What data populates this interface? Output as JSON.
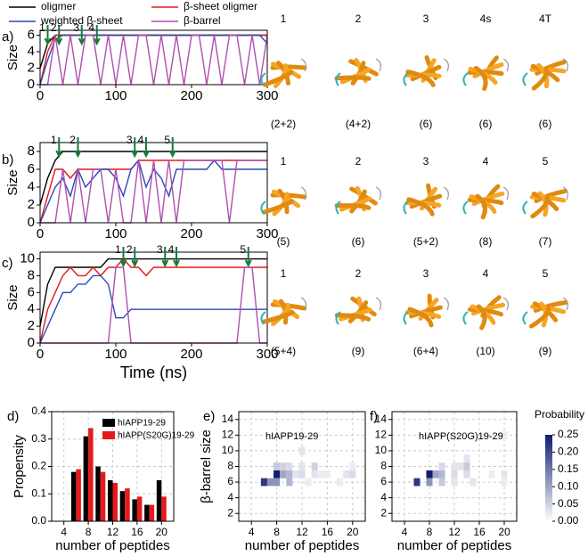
{
  "chart_data": [
    {
      "type": "line",
      "panel_label": "a)",
      "y_label": "Size",
      "xlim": [
        0,
        300
      ],
      "xticks": [
        0,
        100,
        200,
        300
      ],
      "ylim": [
        0,
        6.6
      ],
      "yticks": [
        0,
        2,
        4,
        6
      ],
      "x": [
        0,
        10,
        20,
        30,
        40,
        50,
        60,
        70,
        80,
        90,
        100,
        110,
        120,
        130,
        140,
        150,
        160,
        170,
        180,
        190,
        200,
        210,
        220,
        230,
        240,
        250,
        260,
        270,
        280,
        290,
        300
      ],
      "series": [
        {
          "name": "oligmer",
          "color": "#000000",
          "values": [
            2,
            5,
            6,
            6,
            6,
            6,
            6,
            6,
            6,
            6,
            6,
            6,
            6,
            6,
            6,
            6,
            6,
            6,
            6,
            6,
            6,
            6,
            6,
            6,
            6,
            6,
            6,
            6,
            6,
            6,
            6
          ]
        },
        {
          "name": "β-sheet oligmer",
          "color": "#e41a1c",
          "values": [
            0,
            4,
            6,
            6,
            6,
            6,
            6,
            6,
            6,
            6,
            6,
            6,
            6,
            6,
            6,
            6,
            6,
            6,
            6,
            6,
            6,
            6,
            6,
            6,
            6,
            6,
            6,
            6,
            6,
            6,
            6
          ]
        },
        {
          "name": "weighted β-sheet",
          "color": "#2a4bb8",
          "values": [
            0,
            3,
            5.5,
            6,
            6,
            6,
            6,
            6,
            6,
            6,
            6,
            6,
            6,
            6,
            6,
            6,
            6,
            6,
            6,
            6,
            6,
            6,
            6,
            6,
            6,
            6,
            6,
            6,
            6,
            6,
            5
          ]
        },
        {
          "name": "β-barrel",
          "color": "#b04fb0",
          "values": [
            0,
            0,
            6,
            0,
            6,
            0,
            6,
            6,
            0,
            6,
            0,
            6,
            0,
            6,
            6,
            0,
            6,
            0,
            6,
            0,
            6,
            6,
            0,
            6,
            0,
            6,
            6,
            0,
            6,
            0,
            6
          ]
        }
      ],
      "arrows": {
        "labels": [
          "1",
          "2",
          "3",
          "4"
        ],
        "x": [
          10,
          25,
          55,
          75
        ]
      },
      "snapshots": {
        "labels": [
          "1",
          "2",
          "3",
          "4s",
          "4T"
        ],
        "compositions": [
          "(2+2)",
          "(4+2)",
          "(6)",
          "(6)",
          "(6)"
        ]
      }
    },
    {
      "type": "line",
      "panel_label": "b)",
      "y_label": "Size",
      "xlim": [
        0,
        300
      ],
      "xticks": [
        0,
        100,
        200,
        300
      ],
      "ylim": [
        0,
        9
      ],
      "yticks": [
        0,
        2,
        4,
        6,
        8
      ],
      "x": [
        0,
        10,
        20,
        30,
        40,
        50,
        60,
        70,
        80,
        90,
        100,
        110,
        120,
        130,
        140,
        150,
        160,
        170,
        180,
        190,
        200,
        210,
        220,
        230,
        240,
        250,
        260,
        270,
        280,
        290,
        300
      ],
      "series": [
        {
          "color": "#000000",
          "values": [
            2,
            5,
            7,
            8,
            8,
            8,
            8,
            8,
            8,
            8,
            8,
            8,
            8,
            8,
            8,
            8,
            8,
            8,
            8,
            8,
            8,
            8,
            8,
            8,
            8,
            8,
            8,
            8,
            8,
            8,
            8
          ]
        },
        {
          "color": "#e41a1c",
          "values": [
            0,
            3,
            6,
            6,
            5,
            6,
            6,
            6,
            6,
            6,
            6,
            6,
            6,
            7,
            7,
            7,
            7,
            7,
            7,
            7,
            7,
            7,
            7,
            7,
            7,
            7,
            7,
            7,
            7,
            7,
            7
          ]
        },
        {
          "color": "#2a4bb8",
          "values": [
            0,
            2,
            4,
            5,
            3,
            6,
            4,
            5,
            6,
            6,
            5,
            3,
            6,
            7,
            4,
            6,
            5,
            3,
            6,
            6,
            6,
            6,
            6,
            7,
            6,
            6,
            6,
            6,
            6,
            6,
            6
          ]
        },
        {
          "color": "#b04fb0",
          "values": [
            0,
            0,
            0,
            6,
            0,
            6,
            0,
            6,
            6,
            0,
            6,
            0,
            0,
            7,
            0,
            7,
            0,
            7,
            0,
            7,
            7,
            7,
            7,
            7,
            7,
            0,
            7,
            7,
            7,
            7,
            7
          ]
        }
      ],
      "arrows": {
        "labels": [
          "1",
          "2",
          "3",
          "4",
          "5"
        ],
        "x": [
          25,
          50,
          125,
          140,
          175
        ]
      },
      "snapshots": {
        "labels": [
          "1",
          "2",
          "3",
          "4",
          "5"
        ],
        "compositions": [
          "(5)",
          "(6)",
          "(5+2)",
          "(8)",
          "(7)"
        ]
      }
    },
    {
      "type": "line",
      "panel_label": "c)",
      "y_label": "Size",
      "x_label": "Time  (ns)",
      "xlim": [
        0,
        300
      ],
      "xticks": [
        0,
        100,
        200,
        300
      ],
      "ylim": [
        0,
        10.8
      ],
      "yticks": [
        0,
        2,
        4,
        6,
        8,
        10
      ],
      "x": [
        0,
        10,
        20,
        30,
        40,
        50,
        60,
        70,
        80,
        90,
        100,
        110,
        120,
        130,
        140,
        150,
        160,
        170,
        180,
        190,
        200,
        210,
        220,
        230,
        240,
        250,
        260,
        270,
        280,
        290,
        300
      ],
      "series": [
        {
          "color": "#000000",
          "values": [
            2,
            7,
            9,
            9,
            9,
            9,
            9,
            9,
            9,
            10,
            10,
            10,
            10,
            10,
            10,
            10,
            10,
            10,
            10,
            10,
            10,
            10,
            10,
            10,
            10,
            10,
            10,
            10,
            10,
            10,
            10
          ]
        },
        {
          "color": "#e41a1c",
          "values": [
            0,
            4,
            6,
            8,
            9,
            8,
            8,
            9,
            8,
            9,
            9,
            10,
            9,
            9,
            8,
            9,
            9,
            9,
            9,
            9,
            9,
            9,
            9,
            9,
            9,
            9,
            9,
            9,
            9,
            9,
            9
          ]
        },
        {
          "color": "#2a4bb8",
          "values": [
            0,
            2,
            4,
            6,
            6,
            7,
            7,
            8,
            8,
            7,
            3,
            3,
            4,
            4,
            4,
            4,
            4,
            4,
            4,
            4,
            4,
            4,
            4,
            4,
            4,
            4,
            4,
            4,
            4,
            4,
            4
          ]
        },
        {
          "color": "#b04fb0",
          "values": [
            0,
            0,
            0,
            0,
            0,
            0,
            0,
            0,
            0,
            0,
            9,
            9,
            0,
            0,
            0,
            0,
            0,
            0,
            0,
            0,
            0,
            0,
            0,
            0,
            0,
            0,
            0,
            9,
            9,
            0,
            0
          ]
        }
      ],
      "arrows": {
        "labels": [
          "1",
          "2",
          "3",
          "4",
          "5"
        ],
        "x": [
          110,
          125,
          165,
          180,
          275
        ]
      },
      "snapshots": {
        "labels": [
          "1",
          "2",
          "3",
          "4",
          "5"
        ],
        "compositions": [
          "(5+4)",
          "(9)",
          "(6+4)",
          "(10)",
          "(9)"
        ]
      }
    },
    {
      "type": "bar",
      "panel_label": "d)",
      "y_label": "Propensity",
      "x_label": "number of peptides",
      "xlim": [
        2,
        22
      ],
      "xticks": [
        4,
        8,
        12,
        16,
        20
      ],
      "ylim": [
        0,
        0.4
      ],
      "yticks": [
        {
          "value": 0,
          "label": "0.0"
        },
        {
          "value": 0.1,
          "label": "0.1"
        },
        {
          "value": 0.2,
          "label": "0.2"
        },
        {
          "value": 0.3,
          "label": "0.3"
        },
        {
          "value": 0.4,
          "label": "0.4"
        }
      ],
      "grid": true,
      "x": [
        6,
        8,
        10,
        12,
        14,
        16,
        18,
        20
      ],
      "series": [
        {
          "name": "hIAPP19-29",
          "color": "#000000",
          "values": [
            0.18,
            0.31,
            0.2,
            0.15,
            0.11,
            0.08,
            0.06,
            0.15
          ]
        },
        {
          "name": "hIAPP(S20G)19-29",
          "color": "#e41a1c",
          "values": [
            0.19,
            0.34,
            0.18,
            0.14,
            0.12,
            0.09,
            0.06,
            0.09
          ]
        }
      ]
    },
    {
      "type": "heatmap",
      "panel_label": "e)",
      "title": "hIAPP19-29",
      "y_label": "β-barrel size",
      "x_label": "number of peptides",
      "xlim": [
        2,
        22
      ],
      "xticks": [
        4,
        8,
        12,
        16,
        20
      ],
      "ylim": [
        1,
        15
      ],
      "yticks": [
        2,
        4,
        6,
        8,
        10,
        12,
        14
      ],
      "grid": true,
      "x": [
        6,
        7,
        8,
        8,
        8,
        9,
        9,
        10,
        10,
        10,
        11,
        12,
        12,
        12,
        12,
        13,
        14,
        14,
        15,
        16,
        18,
        19,
        20,
        20
      ],
      "y": [
        6,
        6,
        7,
        6,
        8,
        7,
        8,
        6,
        7,
        8,
        7,
        7,
        8,
        10,
        12,
        6,
        7,
        8,
        7,
        7,
        6,
        7,
        7,
        8
      ],
      "values": [
        0.22,
        0.12,
        0.25,
        0.12,
        0.06,
        0.1,
        0.05,
        0.08,
        0.08,
        0.04,
        0.03,
        0.04,
        0.03,
        0.03,
        0.02,
        0.02,
        0.03,
        0.05,
        0.02,
        0.02,
        0.02,
        0.03,
        0.04,
        0.02
      ]
    },
    {
      "type": "heatmap",
      "panel_label": "f)",
      "title": "hIAPP(S20G)19-29",
      "x_label": "number of peptides",
      "xlim": [
        2,
        22
      ],
      "xticks": [
        4,
        8,
        12,
        16,
        20
      ],
      "ylim": [
        1,
        15
      ],
      "yticks": [
        2,
        4,
        6,
        8,
        10,
        12,
        14
      ],
      "grid": true,
      "x": [
        6,
        8,
        8,
        9,
        10,
        10,
        10,
        12,
        12,
        12,
        13,
        14,
        14,
        14,
        15,
        18,
        20,
        20,
        20
      ],
      "y": [
        6,
        7,
        6,
        7,
        6,
        7,
        8,
        6,
        7,
        8,
        8,
        7,
        8,
        9,
        6,
        7,
        6,
        7,
        12
      ],
      "values": [
        0.22,
        0.25,
        0.12,
        0.1,
        0.06,
        0.08,
        0.04,
        0.03,
        0.04,
        0.03,
        0.03,
        0.04,
        0.06,
        0.03,
        0.03,
        0.02,
        0.02,
        0.03,
        0.02
      ],
      "colorbar": {
        "label": "Probability",
        "lim": [
          0,
          0.25
        ],
        "low_color": "#ffffff",
        "high_color": "#0f1d6e",
        "ticks": [
          {
            "value": 0,
            "label": "0.00"
          },
          {
            "value": 0.05,
            "label": "0.05"
          },
          {
            "value": 0.1,
            "label": "0.10"
          },
          {
            "value": 0.15,
            "label": "0.15"
          },
          {
            "value": 0.2,
            "label": "0.20"
          },
          {
            "value": 0.25,
            "label": "0.25"
          }
        ]
      }
    }
  ]
}
